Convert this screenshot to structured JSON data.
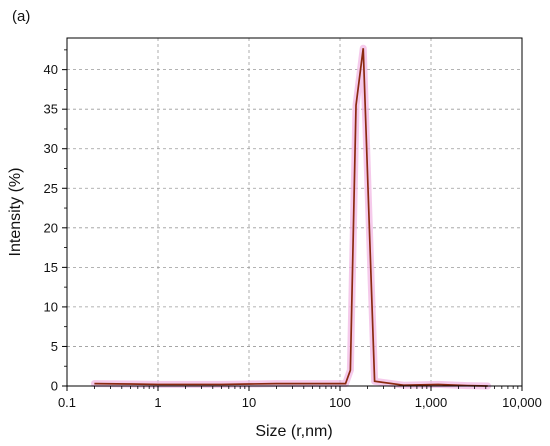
{
  "chart_data": {
    "type": "line",
    "panel_label": "(a)",
    "title": "",
    "xlabel": "Size (r,nm)",
    "ylabel": "Intensity (%)",
    "xscale": "log",
    "xlim": [
      0.1,
      10000
    ],
    "ylim": [
      0,
      44
    ],
    "grid": true,
    "legend": "none",
    "x_ticks": [
      0.1,
      1,
      10,
      100,
      1000,
      10000
    ],
    "x_tick_labels": [
      "0.1",
      "1",
      "10",
      "100",
      "1,000",
      "10,000"
    ],
    "y_ticks": [
      0,
      5,
      10,
      15,
      20,
      25,
      30,
      35,
      40
    ],
    "y_tick_labels": [
      "0",
      "5",
      "10",
      "15",
      "20",
      "25",
      "30",
      "35",
      "40"
    ],
    "series": [
      {
        "x": [
          0.2,
          0.5,
          1,
          2,
          5,
          10,
          20,
          50,
          90,
          115,
          130,
          150,
          180,
          240,
          500,
          1200,
          2500,
          4200
        ],
        "y": [
          0.3,
          0.25,
          0.2,
          0.2,
          0.2,
          0.25,
          0.3,
          0.3,
          0.3,
          0.3,
          2.0,
          35.5,
          42.7,
          0.6,
          0.1,
          0.2,
          0.05,
          0.0
        ]
      }
    ],
    "colors": {
      "line": "#8B2A10",
      "glow": "#F2B8E4",
      "grid": "#9a9a9a",
      "axis": "#000000"
    }
  }
}
